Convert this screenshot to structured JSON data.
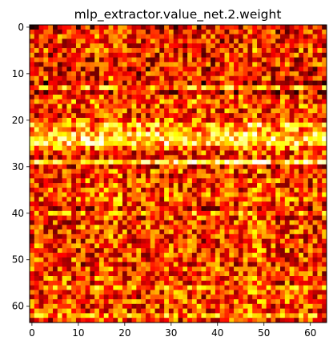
{
  "chart_data": {
    "type": "heatmap",
    "title": "mlp_extractor.value_net.2.weight",
    "xlabel": "",
    "ylabel": "",
    "colormap": "hot",
    "grid": false,
    "shape": [
      64,
      64
    ],
    "xlim": [
      -0.5,
      63.5
    ],
    "ylim": [
      63.5,
      -0.5
    ],
    "x_ticks": [
      0,
      10,
      20,
      30,
      40,
      50,
      60
    ],
    "x_tick_labels": [
      "0",
      "10",
      "20",
      "30",
      "40",
      "50",
      "60"
    ],
    "y_ticks": [
      0,
      10,
      20,
      30,
      40,
      50,
      60
    ],
    "y_tick_labels": [
      "0",
      "10",
      "20",
      "30",
      "40",
      "50",
      "60"
    ],
    "row_intensity": [
      0.22,
      0.3,
      0.4,
      0.3,
      0.34,
      0.38,
      0.32,
      0.28,
      0.33,
      0.25,
      0.3,
      0.35,
      0.18,
      0.62,
      0.2,
      0.45,
      0.48,
      0.42,
      0.4,
      0.38,
      0.45,
      0.72,
      0.6,
      0.78,
      0.86,
      0.8,
      0.55,
      0.4,
      0.35,
      0.86,
      0.28,
      0.4,
      0.35,
      0.42,
      0.38,
      0.4,
      0.48,
      0.45,
      0.4,
      0.3,
      0.55,
      0.38,
      0.35,
      0.42,
      0.4,
      0.38,
      0.35,
      0.42,
      0.38,
      0.36,
      0.4,
      0.35,
      0.4,
      0.38,
      0.42,
      0.36,
      0.55,
      0.42,
      0.38,
      0.4,
      0.42,
      0.4,
      0.6,
      0.35
    ],
    "col_intensity": [
      0.45,
      0.55,
      0.5,
      0.48,
      0.52,
      0.5,
      0.48,
      0.6,
      0.55,
      0.52,
      0.5,
      0.48,
      0.55,
      0.52,
      0.58,
      0.62,
      0.65,
      0.68,
      0.7,
      0.65,
      0.55,
      0.52,
      0.5,
      0.48,
      0.45,
      0.5,
      0.52,
      0.55,
      0.5,
      0.62,
      0.58,
      0.55,
      0.5,
      0.48,
      0.52,
      0.55,
      0.58,
      0.5,
      0.48,
      0.45,
      0.52,
      0.5,
      0.55,
      0.6,
      0.55,
      0.52,
      0.62,
      0.65,
      0.7,
      0.68,
      0.6,
      0.55,
      0.5,
      0.48,
      0.52,
      0.55,
      0.5,
      0.58,
      0.55,
      0.52,
      0.5,
      0.48,
      0.55,
      0.5
    ],
    "noise_seed": 12345
  }
}
